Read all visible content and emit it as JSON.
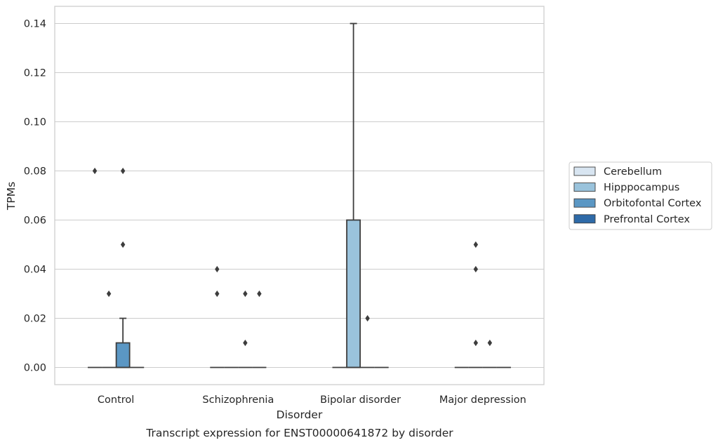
{
  "chart_data": {
    "type": "box",
    "title": "Transcript expression for ENST00000641872 by disorder",
    "xlabel": "Disorder",
    "ylabel": "TPMs",
    "categories": [
      "Control",
      "Schizophrenia",
      "Bipolar disorder",
      "Major depression"
    ],
    "ylim": [
      -0.007,
      0.147
    ],
    "yticks": [
      0.0,
      0.02,
      0.04,
      0.06,
      0.08,
      0.1,
      0.12,
      0.14
    ],
    "ytick_labels": [
      "0.00",
      "0.02",
      "0.04",
      "0.06",
      "0.08",
      "0.10",
      "0.12",
      "0.14"
    ],
    "grid": true,
    "legend_position": "right",
    "series": [
      {
        "name": "Cerebellum",
        "color": "#d8e5f1",
        "boxes": [
          {
            "q1": 0,
            "median": 0,
            "q3": 0,
            "whisker_low": 0,
            "whisker_high": 0,
            "outliers": [
              0.08
            ]
          },
          {
            "q1": 0,
            "median": 0,
            "q3": 0,
            "whisker_low": 0,
            "whisker_high": 0,
            "outliers": [
              0.04,
              0.03
            ]
          },
          {
            "q1": 0,
            "median": 0,
            "q3": 0,
            "whisker_low": 0,
            "whisker_high": 0,
            "outliers": []
          },
          {
            "q1": 0,
            "median": 0,
            "q3": 0,
            "whisker_low": 0,
            "whisker_high": 0,
            "outliers": []
          }
        ]
      },
      {
        "name": "Hipppocampus",
        "color": "#9ac3dc",
        "boxes": [
          {
            "q1": 0,
            "median": 0,
            "q3": 0,
            "whisker_low": 0,
            "whisker_high": 0,
            "outliers": [
              0.03
            ]
          },
          {
            "q1": 0,
            "median": 0,
            "q3": 0,
            "whisker_low": 0,
            "whisker_high": 0,
            "outliers": []
          },
          {
            "q1": 0,
            "median": 0,
            "q3": 0.06,
            "whisker_low": 0,
            "whisker_high": 0.14,
            "outliers": []
          },
          {
            "q1": 0,
            "median": 0,
            "q3": 0,
            "whisker_low": 0,
            "whisker_high": 0,
            "outliers": [
              0.05,
              0.04,
              0.01
            ]
          }
        ]
      },
      {
        "name": "Orbitofontal Cortex",
        "color": "#5b97c4",
        "boxes": [
          {
            "q1": 0,
            "median": 0,
            "q3": 0.01,
            "whisker_low": 0,
            "whisker_high": 0.02,
            "outliers": [
              0.08,
              0.05
            ]
          },
          {
            "q1": 0,
            "median": 0,
            "q3": 0,
            "whisker_low": 0,
            "whisker_high": 0,
            "outliers": [
              0.03,
              0.01
            ]
          },
          {
            "q1": 0,
            "median": 0,
            "q3": 0,
            "whisker_low": 0,
            "whisker_high": 0,
            "outliers": [
              0.02
            ]
          },
          {
            "q1": 0,
            "median": 0,
            "q3": 0,
            "whisker_low": 0,
            "whisker_high": 0,
            "outliers": [
              0.01
            ]
          }
        ]
      },
      {
        "name": "Prefrontal Cortex",
        "color": "#2e6aa8",
        "boxes": [
          {
            "q1": 0,
            "median": 0,
            "q3": 0,
            "whisker_low": 0,
            "whisker_high": 0,
            "outliers": []
          },
          {
            "q1": 0,
            "median": 0,
            "q3": 0,
            "whisker_low": 0,
            "whisker_high": 0,
            "outliers": [
              0.03
            ]
          },
          {
            "q1": 0,
            "median": 0,
            "q3": 0,
            "whisker_low": 0,
            "whisker_high": 0,
            "outliers": []
          },
          {
            "q1": 0,
            "median": 0,
            "q3": 0,
            "whisker_low": 0,
            "whisker_high": 0,
            "outliers": []
          }
        ]
      }
    ]
  }
}
